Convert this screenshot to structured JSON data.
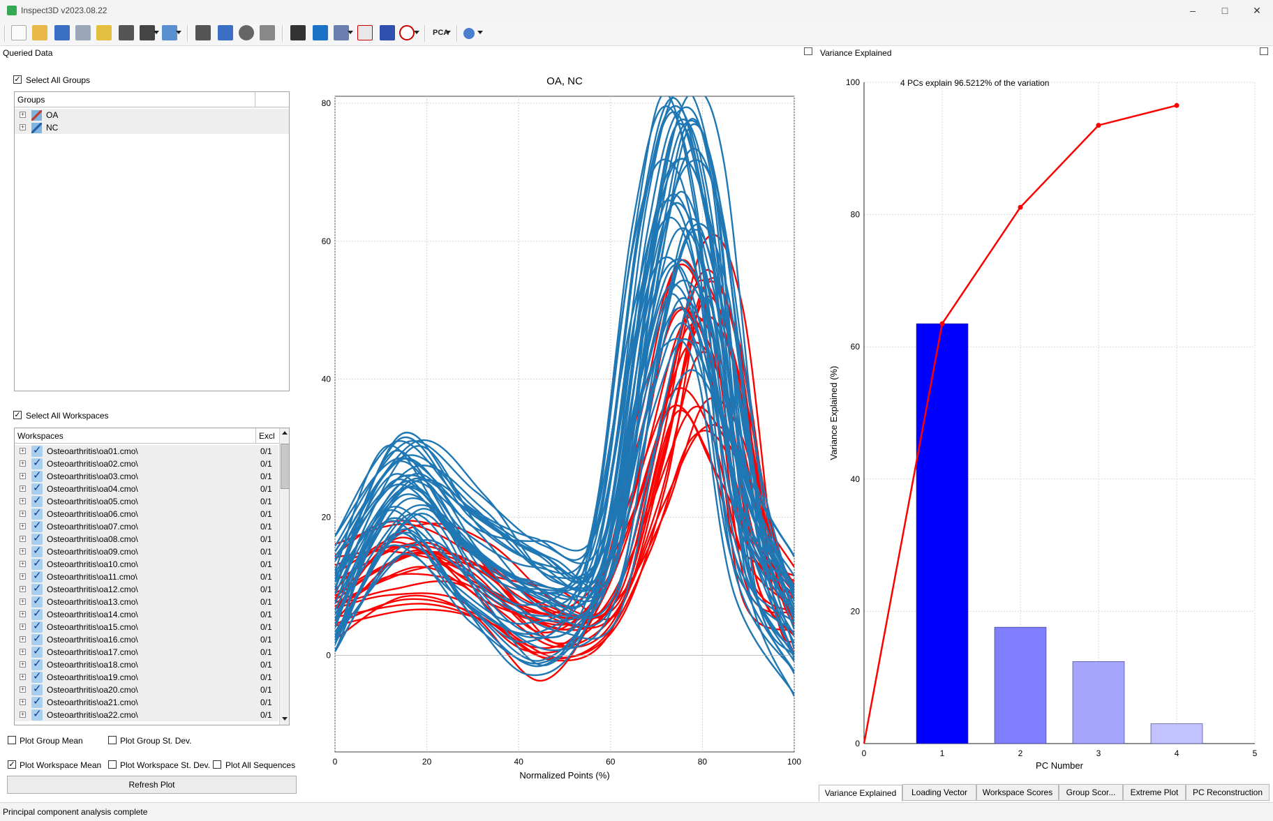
{
  "window": {
    "title": "Inspect3D v2023.08.22"
  },
  "left_panel": {
    "title": "Queried Data",
    "select_all_groups": "Select All Groups",
    "groups_header": "Groups",
    "groups": [
      "OA",
      "NC"
    ],
    "select_all_workspaces": "Select All Workspaces",
    "ws_col_name": "Workspaces",
    "ws_col_excl": "Excl",
    "workspaces": [
      {
        "name": "Osteoarthritis\\oa01.cmo\\",
        "excl": "0/1"
      },
      {
        "name": "Osteoarthritis\\oa02.cmo\\",
        "excl": "0/1"
      },
      {
        "name": "Osteoarthritis\\oa03.cmo\\",
        "excl": "0/1"
      },
      {
        "name": "Osteoarthritis\\oa04.cmo\\",
        "excl": "0/1"
      },
      {
        "name": "Osteoarthritis\\oa05.cmo\\",
        "excl": "0/1"
      },
      {
        "name": "Osteoarthritis\\oa06.cmo\\",
        "excl": "0/1"
      },
      {
        "name": "Osteoarthritis\\oa07.cmo\\",
        "excl": "0/1"
      },
      {
        "name": "Osteoarthritis\\oa08.cmo\\",
        "excl": "0/1"
      },
      {
        "name": "Osteoarthritis\\oa09.cmo\\",
        "excl": "0/1"
      },
      {
        "name": "Osteoarthritis\\oa10.cmo\\",
        "excl": "0/1"
      },
      {
        "name": "Osteoarthritis\\oa11.cmo\\",
        "excl": "0/1"
      },
      {
        "name": "Osteoarthritis\\oa12.cmo\\",
        "excl": "0/1"
      },
      {
        "name": "Osteoarthritis\\oa13.cmo\\",
        "excl": "0/1"
      },
      {
        "name": "Osteoarthritis\\oa14.cmo\\",
        "excl": "0/1"
      },
      {
        "name": "Osteoarthritis\\oa15.cmo\\",
        "excl": "0/1"
      },
      {
        "name": "Osteoarthritis\\oa16.cmo\\",
        "excl": "0/1"
      },
      {
        "name": "Osteoarthritis\\oa17.cmo\\",
        "excl": "0/1"
      },
      {
        "name": "Osteoarthritis\\oa18.cmo\\",
        "excl": "0/1"
      },
      {
        "name": "Osteoarthritis\\oa19.cmo\\",
        "excl": "0/1"
      },
      {
        "name": "Osteoarthritis\\oa20.cmo\\",
        "excl": "0/1"
      },
      {
        "name": "Osteoarthritis\\oa21.cmo\\",
        "excl": "0/1"
      },
      {
        "name": "Osteoarthritis\\oa22.cmo\\",
        "excl": "0/1"
      }
    ],
    "opt_group_mean": "Plot Group Mean",
    "opt_group_sd": "Plot Group St. Dev.",
    "opt_ws_mean": "Plot Workspace Mean",
    "opt_ws_sd": "Plot Workspace St. Dev.",
    "opt_all_seq": "Plot All Sequences",
    "refresh": "Refresh Plot"
  },
  "right_panel": {
    "title": "Variance Explained",
    "tabs": [
      "Variance Explained",
      "Loading Vector",
      "Workspace Scores",
      "Group Scor...",
      "Extreme Plot",
      "PC Reconstruction"
    ]
  },
  "status": "Principal component analysis complete",
  "colors": {
    "oa": "#ff0000",
    "nc": "#1f77b4",
    "bar1": "#0000ff",
    "bar2": "#8080ff",
    "bar3": "#a6a6ff",
    "bar4": "#c2c2ff",
    "cumline": "#ff0000"
  },
  "chart_data": [
    {
      "type": "line",
      "title": "OA, NC",
      "xlabel": "Normalized Points (%)",
      "ylabel": "",
      "xlim": [
        0,
        100
      ],
      "ylim": [
        -14,
        81
      ],
      "xticks": [
        0,
        20,
        40,
        60,
        80,
        100
      ],
      "yticks": [
        0,
        20,
        40,
        60,
        80
      ],
      "grid": true,
      "series": [
        {
          "group": "OA",
          "count": 22,
          "x": [
            0,
            15,
            30,
            45,
            58,
            68,
            77,
            85,
            92,
            100
          ],
          "y": [
            10,
            15,
            12,
            5,
            8,
            30,
            55,
            45,
            15,
            8
          ]
        },
        {
          "group": "NC",
          "count": 40,
          "x": [
            0,
            15,
            30,
            45,
            58,
            68,
            75,
            82,
            90,
            100
          ],
          "y": [
            8,
            25,
            15,
            8,
            14,
            55,
            72,
            60,
            20,
            5
          ]
        }
      ]
    },
    {
      "type": "bar",
      "annotation": "4 PCs explain 96.5212% of the variation",
      "xlabel": "PC Number",
      "ylabel": "Variance Explained (%)",
      "xlim": [
        0,
        5
      ],
      "ylim": [
        0,
        100
      ],
      "xticks": [
        0,
        1,
        2,
        3,
        4,
        5
      ],
      "yticks": [
        0,
        20,
        40,
        60,
        80,
        100
      ],
      "grid": true,
      "categories": [
        1,
        2,
        3,
        4
      ],
      "values": [
        63.5,
        17.6,
        12.4,
        3.0
      ],
      "cumulative": {
        "x": [
          0,
          1,
          2,
          3,
          4
        ],
        "y": [
          0,
          63.5,
          81.1,
          93.5,
          96.5
        ]
      }
    }
  ]
}
